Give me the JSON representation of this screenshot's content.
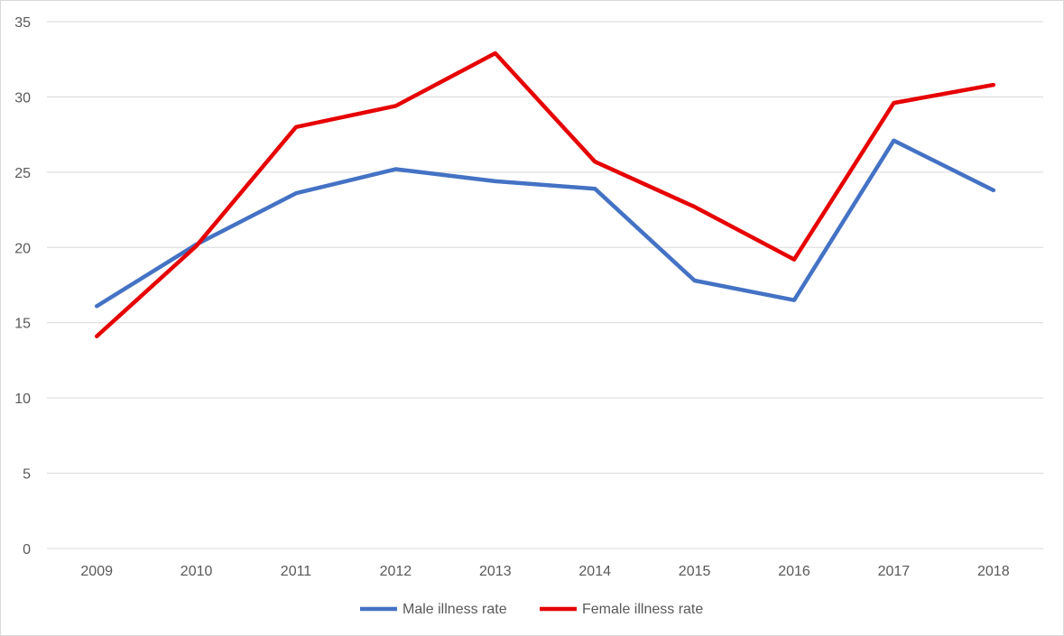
{
  "chart_data": {
    "type": "line",
    "title": "",
    "xlabel": "",
    "ylabel": "",
    "x": [
      "2009",
      "2010",
      "2011",
      "2012",
      "2013",
      "2014",
      "2015",
      "2016",
      "2017",
      "2018"
    ],
    "ylim": [
      0,
      35
    ],
    "yticks": [
      "0",
      "5",
      "10",
      "15",
      "20",
      "25",
      "30",
      "35"
    ],
    "grid": true,
    "legend_position": "bottom",
    "series": [
      {
        "name": "Male illness rate",
        "color": "#4472c4",
        "values": [
          16.1,
          20.2,
          23.6,
          25.2,
          24.4,
          23.9,
          17.8,
          16.5,
          27.1,
          23.8
        ]
      },
      {
        "name": "Female illness rate",
        "color": "#e60000",
        "values": [
          14.1,
          20.1,
          28.0,
          29.4,
          32.9,
          25.7,
          22.7,
          19.2,
          29.6,
          30.8
        ]
      }
    ]
  }
}
